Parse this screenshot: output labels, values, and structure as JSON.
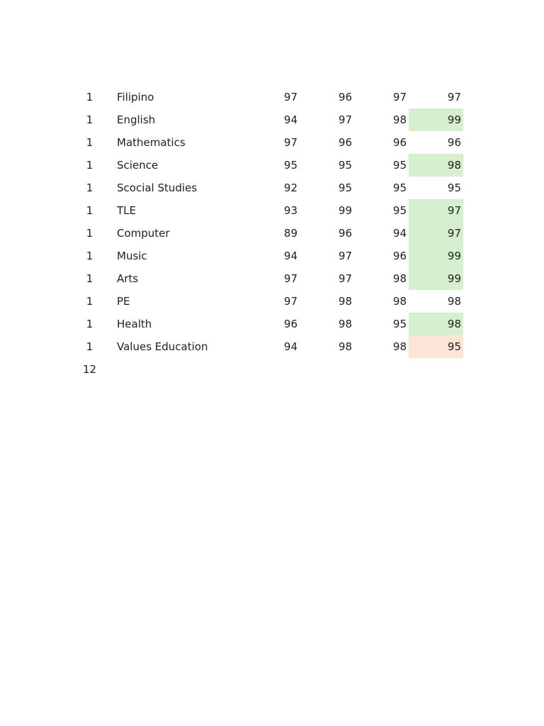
{
  "page": {
    "background_color": "#ffffff",
    "text_color": "#212121"
  },
  "table": {
    "highlight_colors": {
      "green": "#d6efce",
      "pink": "#fce4d7"
    },
    "rows": [
      {
        "level": "1",
        "subject": "Filipino",
        "grades": [
          "97",
          "96",
          "97",
          "97"
        ],
        "highlight": "none"
      },
      {
        "level": "1",
        "subject": "English",
        "grades": [
          "94",
          "97",
          "98",
          "99"
        ],
        "highlight": "green"
      },
      {
        "level": "1",
        "subject": "Mathematics",
        "grades": [
          "97",
          "96",
          "96",
          "96"
        ],
        "highlight": "none"
      },
      {
        "level": "1",
        "subject": "Science",
        "grades": [
          "95",
          "95",
          "95",
          "98"
        ],
        "highlight": "green"
      },
      {
        "level": "1",
        "subject": "Scocial Studies",
        "grades": [
          "92",
          "95",
          "95",
          "95"
        ],
        "highlight": "none"
      },
      {
        "level": "1",
        "subject": "TLE",
        "grades": [
          "93",
          "99",
          "95",
          "97"
        ],
        "highlight": "green"
      },
      {
        "level": "1",
        "subject": "Computer",
        "grades": [
          "89",
          "96",
          "94",
          "97"
        ],
        "highlight": "green"
      },
      {
        "level": "1",
        "subject": "Music",
        "grades": [
          "94",
          "97",
          "96",
          "99"
        ],
        "highlight": "green"
      },
      {
        "level": "1",
        "subject": "Arts",
        "grades": [
          "97",
          "97",
          "98",
          "99"
        ],
        "highlight": "green"
      },
      {
        "level": "1",
        "subject": "PE",
        "grades": [
          "97",
          "98",
          "98",
          "98"
        ],
        "highlight": "none"
      },
      {
        "level": "1",
        "subject": "Health",
        "grades": [
          "96",
          "98",
          "95",
          "98"
        ],
        "highlight": "green"
      },
      {
        "level": "1",
        "subject": "Values Education",
        "grades": [
          "94",
          "98",
          "98",
          "95"
        ],
        "highlight": "pink"
      },
      {
        "level": "12",
        "subject": "",
        "grades": [
          "",
          "",
          "",
          ""
        ],
        "highlight": "none"
      }
    ]
  }
}
